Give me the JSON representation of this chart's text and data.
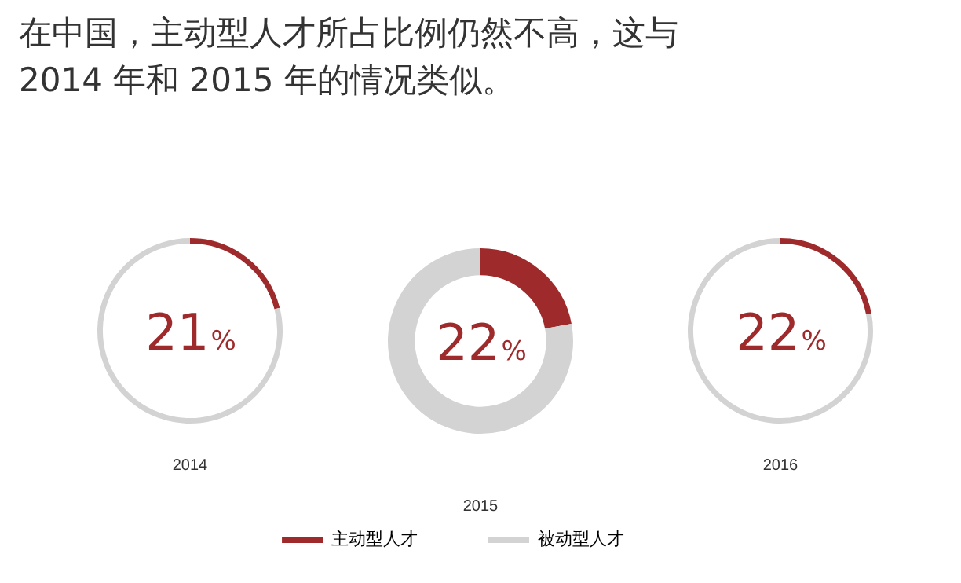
{
  "chart_data": [
    {
      "type": "other",
      "title": "在中国，主动型人才所占比例仍然不高，这与 2014 年和 2015 年的情况类似。"
    },
    {
      "type": "donut",
      "xlabel": "2014",
      "values": [
        21,
        79
      ],
      "colors": [
        "#9e2a2b",
        "#d3d3d3"
      ],
      "annotations": [
        "21%"
      ]
    },
    {
      "type": "donut",
      "xlabel": "2015",
      "categories": [
        "主动型人才",
        "被动型人才"
      ],
      "values": [
        22,
        78
      ],
      "colors": [
        "#9e2a2b",
        "#d3d3d3"
      ],
      "annotations": [
        "22%"
      ],
      "legend": "bottom"
    },
    {
      "type": "donut",
      "xlabel": "2016",
      "values": [
        22,
        78
      ],
      "colors": [
        "#9e2a2b",
        "#d3d3d3"
      ],
      "annotations": [
        "22%"
      ]
    }
  ]
}
